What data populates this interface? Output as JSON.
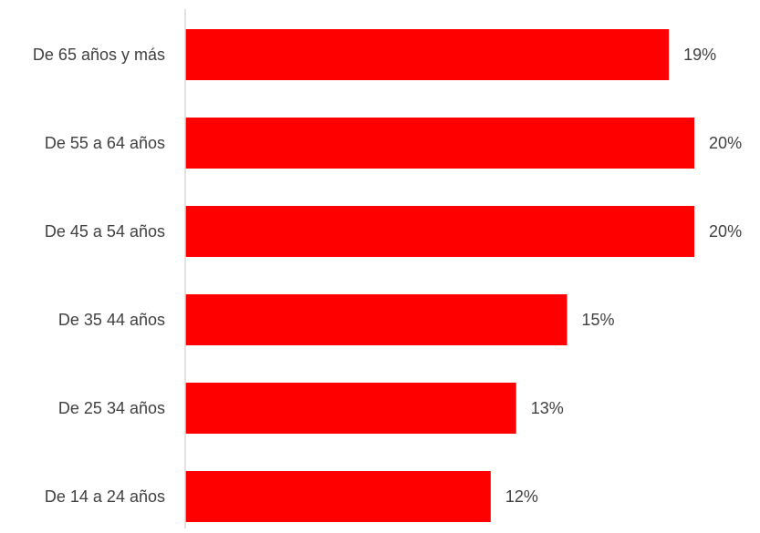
{
  "chart_data": {
    "type": "bar",
    "orientation": "horizontal",
    "title": "",
    "xlabel": "",
    "ylabel": "",
    "categories": [
      "De 65 años y más",
      "De 55 a 64 años",
      "De 45 a 54 años",
      "De 35 44 años",
      "De 25 34 años",
      "De 14 a 24 años"
    ],
    "values": [
      19,
      20,
      20,
      15,
      13,
      12
    ],
    "value_labels": [
      "19%",
      "20%",
      "20%",
      "15%",
      "13%",
      "12%"
    ],
    "unit": "%",
    "xlim": [
      0,
      20.5
    ],
    "grid": false,
    "legend": "none",
    "bar_color": "#FF0000",
    "axis_color": "#D9D9D9",
    "label_color": "#404040"
  }
}
